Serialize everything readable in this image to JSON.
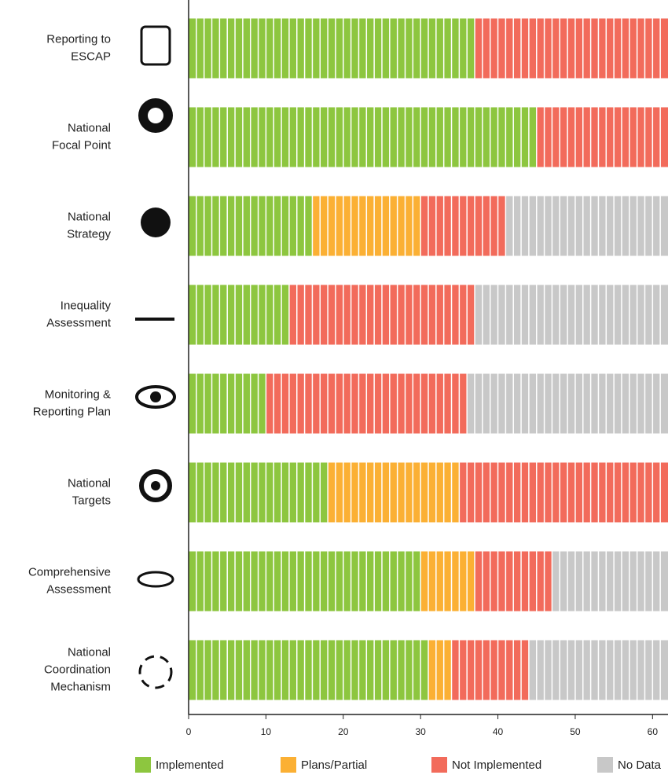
{
  "chart_data": {
    "type": "stacked-bar-horizontal",
    "categories": [
      [
        "Reporting to",
        "ESCAP"
      ],
      [
        "National",
        "Focal Point"
      ],
      [
        "National",
        "Strategy"
      ],
      [
        "Inequality",
        "Assessment"
      ],
      [
        "Monitoring &",
        "Reporting Plan"
      ],
      [
        "National",
        "Targets"
      ],
      [
        "Comprehensive",
        "Assessment"
      ],
      [
        "National",
        "Coordination",
        "Mechanism"
      ]
    ],
    "series": [
      {
        "name": "Implemented",
        "color": "#8dc63f",
        "values": [
          37,
          45,
          16,
          13,
          10,
          18,
          30,
          31
        ]
      },
      {
        "name": "Plans/Partial",
        "color": "#fbb034",
        "values": [
          0,
          0,
          14,
          0,
          0,
          17,
          7,
          3
        ]
      },
      {
        "name": "Not Implemented",
        "color": "#f26b5b",
        "values": [
          25,
          17,
          11,
          24,
          26,
          27,
          10,
          10
        ]
      },
      {
        "name": "No Data",
        "color": "#c8c8c8",
        "values": [
          0,
          0,
          21,
          25,
          26,
          0,
          15,
          18
        ]
      }
    ],
    "xlim": [
      0,
      62
    ],
    "xticks": [
      0,
      10,
      20,
      30,
      40,
      50,
      60
    ]
  }
}
